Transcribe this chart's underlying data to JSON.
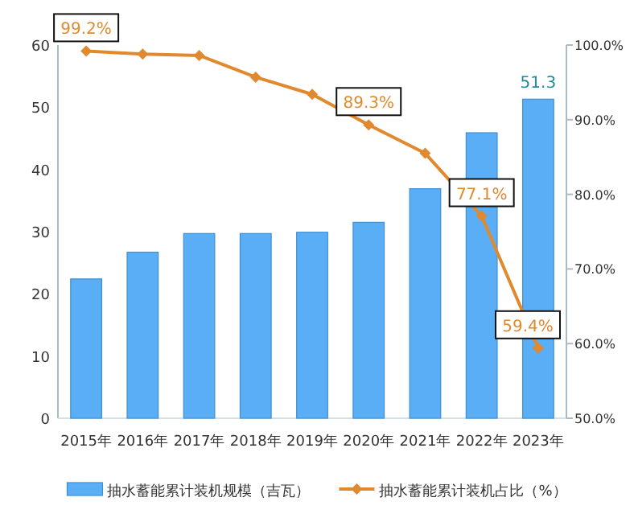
{
  "chart_data": {
    "type": "bar",
    "categories": [
      "2015年",
      "2016年",
      "2017年",
      "2018年",
      "2019年",
      "2020年",
      "2021年",
      "2022年",
      "2023年"
    ],
    "series": [
      {
        "name": "抽水蓄能累计装机规模（吉瓦）",
        "color": "#5aaef5",
        "values": [
          22.4,
          26.7,
          29.7,
          29.7,
          29.9,
          31.5,
          36.9,
          45.9,
          51.3
        ],
        "value_labels": [
          null,
          null,
          null,
          null,
          null,
          null,
          null,
          null,
          "51.3"
        ]
      },
      {
        "name": "抽水蓄能累计装机占比（%）",
        "type": "line",
        "axis": "y2",
        "color": "#e0892e",
        "marker": "diamond",
        "values": [
          99.2,
          98.8,
          98.6,
          95.7,
          93.4,
          89.3,
          85.5,
          77.1,
          59.4
        ],
        "value_labels": [
          "99.2%",
          null,
          null,
          null,
          null,
          "89.3%",
          null,
          "77.1%",
          "59.4%"
        ]
      }
    ],
    "ylim": [
      0,
      60
    ],
    "yticks": [
      0,
      10,
      20,
      30,
      40,
      50,
      60
    ],
    "y2lim": [
      50,
      100
    ],
    "y2ticks": [
      {
        "value": 50,
        "label": "50.0%"
      },
      {
        "value": 60,
        "label": "60.0%"
      },
      {
        "value": 70,
        "label": "70.0%"
      },
      {
        "value": 80,
        "label": "80.0%"
      },
      {
        "value": 90,
        "label": "90.0%"
      },
      {
        "value": 100,
        "label": "100.0%"
      }
    ],
    "legend": "bottom"
  }
}
